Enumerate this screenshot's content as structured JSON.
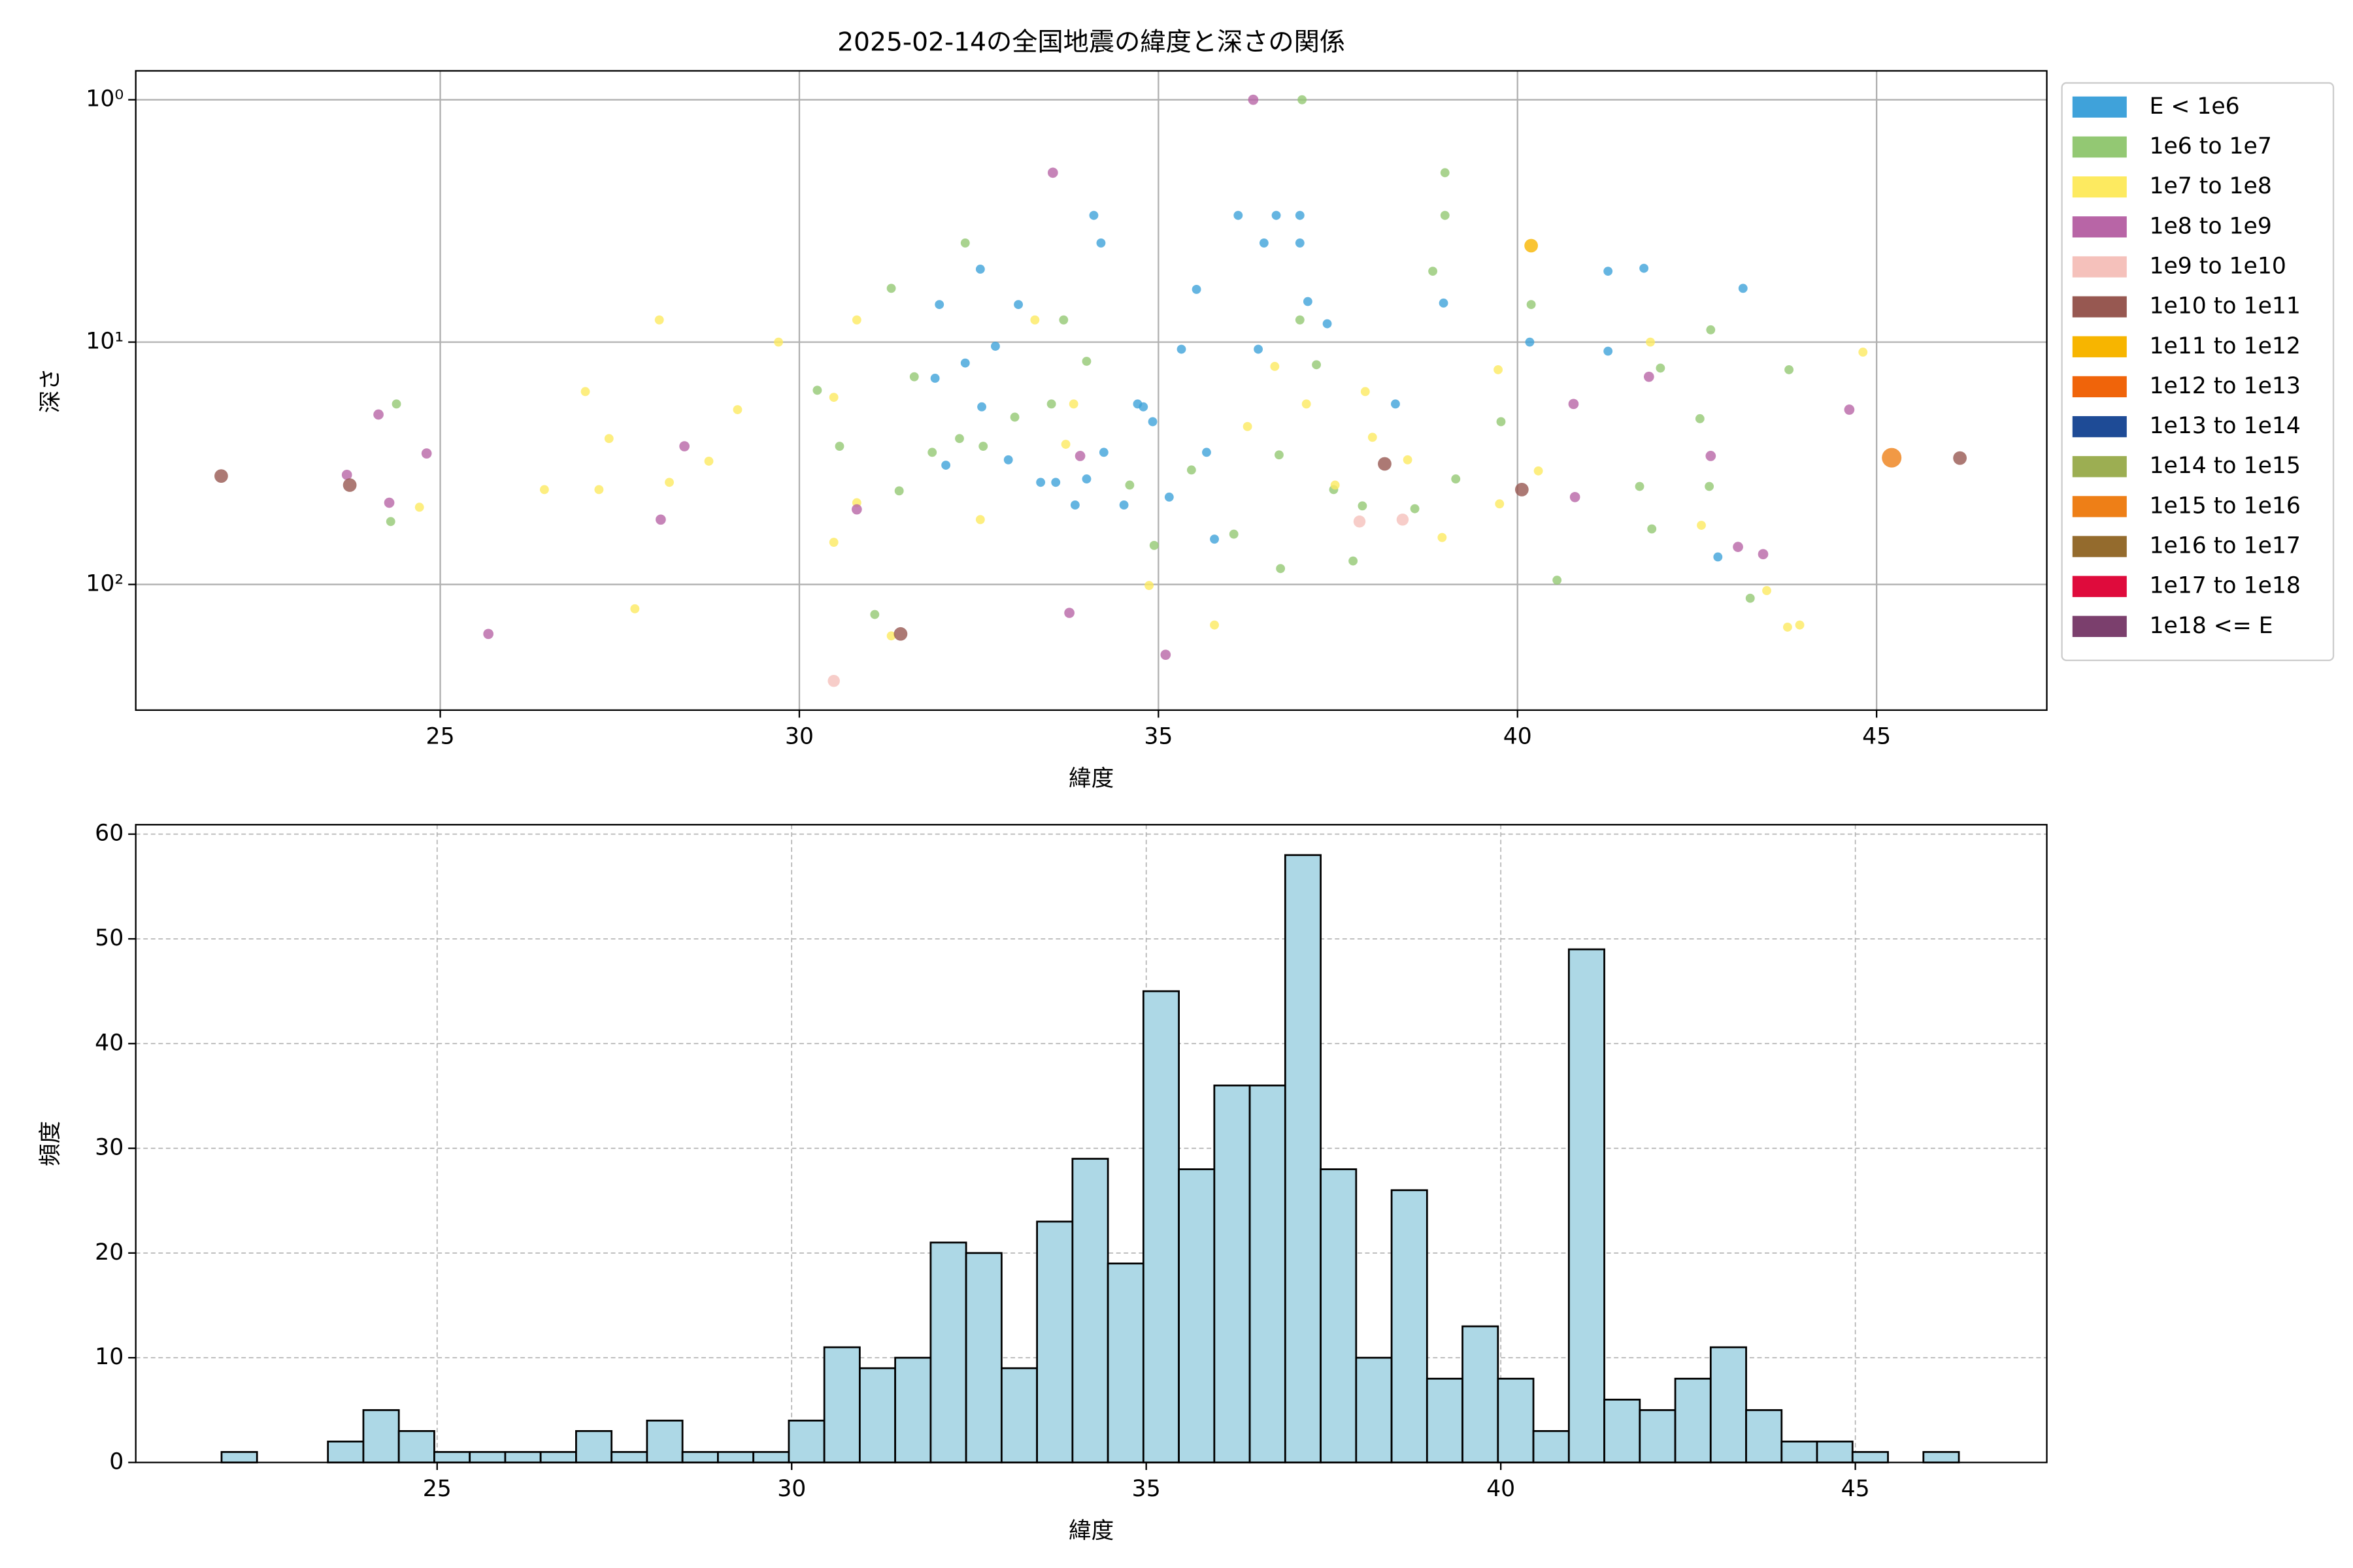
{
  "chart_data": [
    {
      "type": "scatter",
      "title": "2025-02-14の全国地震の緯度と深さの関係",
      "x_label": "緯度",
      "y_label": "深さ",
      "xlim": [
        20.76,
        47.37
      ],
      "xticks": [
        25,
        30,
        35,
        40,
        45
      ],
      "ylim": [
        0.76,
        330
      ],
      "y_log": true,
      "y_inverted": true,
      "yticks": [
        {
          "value": 1,
          "label": "10⁰"
        },
        {
          "value": 10,
          "label": "10¹"
        },
        {
          "value": 100,
          "label": "10²"
        }
      ],
      "grid": true,
      "legend": "outside-right",
      "series": [
        {
          "name": "E < 1e6",
          "color": "#3fa2da",
          "marker_size": 3,
          "x": [
            31.95,
            32.52,
            32.31,
            32.54,
            33.05,
            33.36,
            33.57,
            34.0,
            34.1,
            34.2,
            34.24,
            34.71,
            34.92,
            35.15,
            35.67,
            35.53,
            36.11,
            36.47,
            36.64,
            36.97,
            36.97,
            37.08,
            37.35,
            38.3,
            38.97,
            40.17,
            41.26,
            41.26,
            41.76,
            43.14,
            42.79,
            35.78,
            34.79,
            35.32,
            34.52,
            33.84,
            32.91,
            32.73,
            31.89,
            32.04,
            36.39
          ],
          "values": [
            7.0,
            5.0,
            12.2,
            18.5,
            7.0,
            37.9,
            37.9,
            36.7,
            3.0,
            3.9,
            28.5,
            18,
            21.3,
            43.6,
            28.5,
            6.06,
            3.0,
            3.9,
            3.0,
            3.9,
            3.0,
            6.8,
            8.4,
            18,
            6.9,
            10,
            5.1,
            10.9,
            4.96,
            6.0,
            77,
            65,
            18.5,
            10.7,
            47,
            47,
            30.6,
            10.4,
            14.1,
            32.2,
            10.7
          ]
        },
        {
          "name": "1e6 to 1e7",
          "color": "#93c873",
          "marker_size": 3,
          "x": [
            37.0,
            38.99,
            38.99,
            32.31,
            31.28,
            24.39,
            24.31,
            30.25,
            30.56,
            31.05,
            31.39,
            31.6,
            31.85,
            32.23,
            32.56,
            33.0,
            33.51,
            33.68,
            34.0,
            34.6,
            34.94,
            35.46,
            36.05,
            36.68,
            36.97,
            37.2,
            37.44,
            37.71,
            37.84,
            38.57,
            39.14,
            39.77,
            40.19,
            40.55,
            41.7,
            41.99,
            42.69,
            42.54,
            42.67,
            43.24,
            43.78,
            41.87,
            36.7,
            38.82
          ],
          "values": [
            1.0,
            2.0,
            3.0,
            3.9,
            6.0,
            18,
            55,
            15.8,
            26.9,
            133,
            41.1,
            13.9,
            28.5,
            25,
            26.9,
            20.4,
            18,
            8.1,
            12,
            38.9,
            69,
            33.7,
            62,
            29.2,
            8.1,
            12.4,
            40.6,
            80,
            47.4,
            48.7,
            36.7,
            21.3,
            7.0,
            96,
            39.4,
            12.8,
            8.9,
            20.7,
            39.4,
            114,
            13,
            59,
            86,
            5.1
          ]
        },
        {
          "name": "1e7 to 1e8",
          "color": "#fdea60",
          "marker_size": 3,
          "x": [
            28.05,
            27.02,
            27.35,
            28.19,
            28.74,
            29.14,
            29.71,
            30.48,
            30.8,
            30.8,
            30.48,
            26.45,
            27.21,
            24.71,
            27.71,
            31.28,
            32.52,
            33.28,
            33.82,
            33.71,
            34.87,
            35.78,
            36.24,
            36.62,
            37.06,
            37.46,
            37.88,
            37.98,
            38.47,
            38.95,
            39.73,
            39.75,
            40.29,
            42.56,
            43.47,
            43.76,
            43.93,
            44.81,
            41.85
          ],
          "values": [
            8.1,
            16,
            25,
            37.9,
            31,
            19,
            10.0,
            16.9,
            8.1,
            46,
            67,
            40.6,
            40.6,
            48,
            126,
            163,
            54,
            8.1,
            18,
            26.4,
            101,
            147,
            22.3,
            12.6,
            18,
            38.9,
            16,
            24.7,
            30.6,
            64,
            13,
            46.5,
            34,
            57,
            106,
            150,
            147,
            11,
            10
          ]
        },
        {
          "name": "1e8 to 1e9",
          "color": "#b865a6",
          "marker_size": 3.4,
          "x": [
            36.32,
            33.53,
            24.14,
            23.7,
            24.29,
            24.81,
            28.4,
            28.07,
            25.67,
            30.8,
            33.91,
            33.76,
            35.1,
            40.78,
            40.8,
            41.83,
            42.69,
            43.07,
            43.42,
            44.62
          ],
          "values": [
            1.0,
            2.0,
            19.9,
            35.3,
            46,
            28.8,
            26.9,
            54,
            160,
            49,
            29.5,
            131,
            195,
            18,
            43.6,
            13.9,
            29.5,
            70,
            75,
            19
          ]
        },
        {
          "name": "1e9 to 1e10",
          "color": "#f5c1bb",
          "marker_size": 4,
          "x": [
            30.48,
            38.4,
            37.8
          ],
          "values": [
            250,
            54,
            55
          ]
        },
        {
          "name": "1e10 to 1e11",
          "color": "#975851",
          "marker_size": 4.5,
          "x": [
            21.95,
            23.74,
            31.41,
            38.15,
            40.06,
            46.16
          ],
          "values": [
            35.7,
            38.9,
            160,
            31.8,
            40.6,
            30.1
          ]
        },
        {
          "name": "1e11 to 1e12",
          "color": "#f7b500",
          "marker_size": 4.5,
          "x": [
            40.19
          ],
          "values": [
            4.0
          ]
        },
        {
          "name": "1e12 to 1e13",
          "color": "#f0640a",
          "marker_size": 5,
          "x": [],
          "values": []
        },
        {
          "name": "1e13 to 1e14",
          "color": "#1e4b96",
          "marker_size": 5,
          "x": [],
          "values": []
        },
        {
          "name": "1e14 to 1e15",
          "color": "#9cae52",
          "marker_size": 5.5,
          "x": [],
          "values": []
        },
        {
          "name": "1e15 to 1e16",
          "color": "#ee7f17",
          "marker_size": 6.5,
          "x": [
            45.21
          ],
          "values": [
            30.0
          ]
        },
        {
          "name": "1e16 to 1e17",
          "color": "#946b2d",
          "marker_size": 7,
          "x": [],
          "values": []
        },
        {
          "name": "1e17 to 1e18",
          "color": "#df0b3c",
          "marker_size": 7,
          "x": [],
          "values": []
        },
        {
          "name": "1e18 <= E",
          "color": "#7b3f6d",
          "marker_size": 7,
          "x": [],
          "values": []
        }
      ]
    },
    {
      "type": "histogram",
      "x_label": "緯度",
      "y_label": "頻度",
      "color": "#add8e6",
      "edge_color": "#000000",
      "xlim": [
        20.75,
        47.7
      ],
      "xticks": [
        25,
        30,
        35,
        40,
        45
      ],
      "ylim": [
        0,
        60.9
      ],
      "yticks": [
        0,
        10,
        20,
        30,
        40,
        50,
        60
      ],
      "grid": true,
      "bins": [
        21.96,
        22.46,
        22.96,
        23.46,
        23.96,
        24.46,
        24.96,
        25.46,
        25.96,
        26.46,
        26.96,
        27.46,
        27.96,
        28.46,
        28.96,
        29.46,
        29.96,
        30.46,
        30.96,
        31.46,
        31.96,
        32.46,
        32.96,
        33.46,
        33.96,
        34.46,
        34.96,
        35.46,
        35.96,
        36.46,
        36.96,
        37.46,
        37.96,
        38.46,
        38.96,
        39.46,
        39.96,
        40.46,
        40.96,
        41.46,
        41.96,
        42.46,
        42.96,
        43.46,
        43.96,
        44.46,
        44.96,
        45.46,
        45.96,
        46.46
      ],
      "values": [
        1,
        0,
        0,
        2,
        5,
        3,
        1,
        1,
        1,
        1,
        3,
        1,
        4,
        1,
        1,
        1,
        4,
        11,
        9,
        10,
        21,
        20,
        9,
        23,
        29,
        19,
        45,
        28,
        36,
        36,
        58,
        28,
        10,
        26,
        8,
        13,
        8,
        3,
        49,
        6,
        5,
        8,
        11,
        5,
        2,
        2,
        1,
        0,
        1
      ]
    }
  ]
}
